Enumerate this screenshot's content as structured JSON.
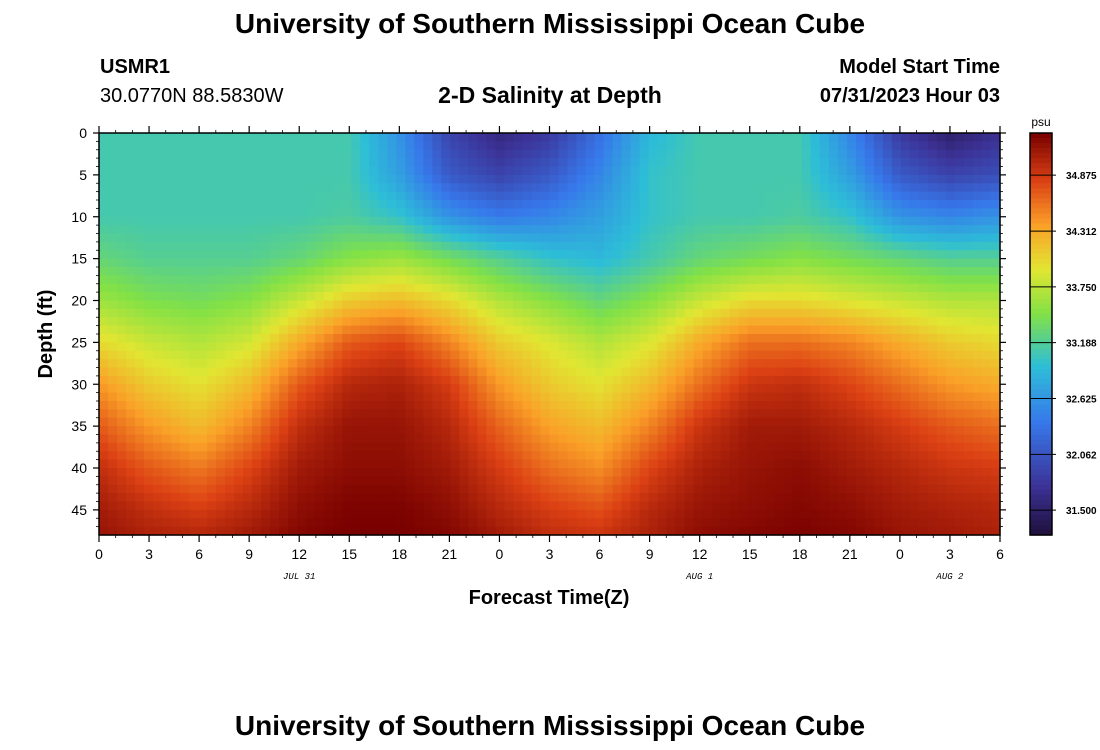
{
  "header": {
    "title": "University of Southern Mississippi Ocean Cube",
    "station_id": "USMR1",
    "coordinates": "30.0770N  88.5830W",
    "subtitle": "2-D Salinity at Depth",
    "model_start_label": "Model Start Time",
    "model_start_value": "07/31/2023 Hour 03"
  },
  "footer": {
    "title": "University of Southern Mississippi Ocean Cube"
  },
  "chart_data": {
    "type": "heatmap",
    "title": "2-D Salinity at Depth",
    "xlabel": "Forecast Time(Z)",
    "ylabel": "Depth (ft)",
    "x_ticks": [
      "0",
      "3",
      "6",
      "9",
      "12",
      "15",
      "18",
      "21",
      "0",
      "3",
      "6",
      "9",
      "12",
      "15",
      "18",
      "21",
      "0",
      "3",
      "6"
    ],
    "x_hours": [
      0,
      54
    ],
    "date_labels": [
      {
        "label": "JUL 31",
        "hour": 12
      },
      {
        "label": "AUG 1",
        "hour": 36
      },
      {
        "label": "AUG 2",
        "hour": 51
      }
    ],
    "y_ticks": [
      "0",
      "5",
      "10",
      "15",
      "20",
      "25",
      "30",
      "35",
      "40",
      "45"
    ],
    "ylim": [
      0,
      48
    ],
    "y_inverted": true,
    "colorbar": {
      "unit": "psu",
      "min": 31.25,
      "max": 35.3,
      "tick_values": [
        31.5,
        32.062,
        32.625,
        33.188,
        33.75,
        34.312,
        34.875
      ],
      "tick_labels": [
        "31.500",
        "32.062",
        "32.625",
        "33.188",
        "33.750",
        "34.312",
        "34.875"
      ]
    },
    "salinity_depth_ft": [
      0,
      5,
      10,
      15,
      20,
      25,
      30,
      35,
      40,
      45,
      48
    ],
    "salinity_hours": [
      0,
      3,
      6,
      9,
      12,
      15,
      18,
      21,
      24,
      27,
      30,
      33,
      36,
      39,
      42,
      45,
      48,
      51,
      54
    ],
    "salinity_grid": [
      [
        33.1,
        33.1,
        33.1,
        33.1,
        33.1,
        33.1,
        32.6,
        31.9,
        31.6,
        31.8,
        32.3,
        32.9,
        33.1,
        33.1,
        33.1,
        32.5,
        31.8,
        31.5,
        31.7
      ],
      [
        33.1,
        33.1,
        33.1,
        33.1,
        33.1,
        33.1,
        32.7,
        32.1,
        31.9,
        32.1,
        32.5,
        33.0,
        33.1,
        33.1,
        33.1,
        32.7,
        32.1,
        31.9,
        32.0
      ],
      [
        33.1,
        33.1,
        33.1,
        33.1,
        33.1,
        33.15,
        33.0,
        32.6,
        32.4,
        32.5,
        32.7,
        33.0,
        33.1,
        33.1,
        33.15,
        33.0,
        32.6,
        32.5,
        32.6
      ],
      [
        33.3,
        33.2,
        33.2,
        33.2,
        33.3,
        33.5,
        33.6,
        33.4,
        33.2,
        33.0,
        32.9,
        33.1,
        33.3,
        33.4,
        33.5,
        33.4,
        33.3,
        33.2,
        33.2
      ],
      [
        33.6,
        33.45,
        33.4,
        33.5,
        33.8,
        34.1,
        34.2,
        34.0,
        33.7,
        33.5,
        33.3,
        33.5,
        33.8,
        34.0,
        34.0,
        33.9,
        33.8,
        33.7,
        33.7
      ],
      [
        34.0,
        33.8,
        33.7,
        33.85,
        34.3,
        34.7,
        34.8,
        34.5,
        34.1,
        33.9,
        33.7,
        33.9,
        34.3,
        34.6,
        34.6,
        34.5,
        34.3,
        34.1,
        34.0
      ],
      [
        34.4,
        34.1,
        33.95,
        34.2,
        34.7,
        35.0,
        35.05,
        34.85,
        34.4,
        34.1,
        33.95,
        34.2,
        34.6,
        34.9,
        34.95,
        34.8,
        34.6,
        34.4,
        34.3
      ],
      [
        34.7,
        34.4,
        34.2,
        34.5,
        34.95,
        35.15,
        35.15,
        35.0,
        34.65,
        34.35,
        34.2,
        34.5,
        34.9,
        35.1,
        35.1,
        35.0,
        34.85,
        34.7,
        34.6
      ],
      [
        34.95,
        34.7,
        34.55,
        34.8,
        35.1,
        35.2,
        35.2,
        35.1,
        34.85,
        34.6,
        34.45,
        34.8,
        35.05,
        35.15,
        35.2,
        35.1,
        35.0,
        34.9,
        34.85
      ],
      [
        35.1,
        34.95,
        34.85,
        35.0,
        35.2,
        35.28,
        35.28,
        35.2,
        35.0,
        34.85,
        34.75,
        35.0,
        35.15,
        35.2,
        35.25,
        35.2,
        35.1,
        35.05,
        35.0
      ],
      [
        35.15,
        35.05,
        35.0,
        35.1,
        35.25,
        35.3,
        35.3,
        35.25,
        35.1,
        34.95,
        34.9,
        35.05,
        35.2,
        35.25,
        35.28,
        35.25,
        35.15,
        35.1,
        35.05
      ]
    ]
  }
}
